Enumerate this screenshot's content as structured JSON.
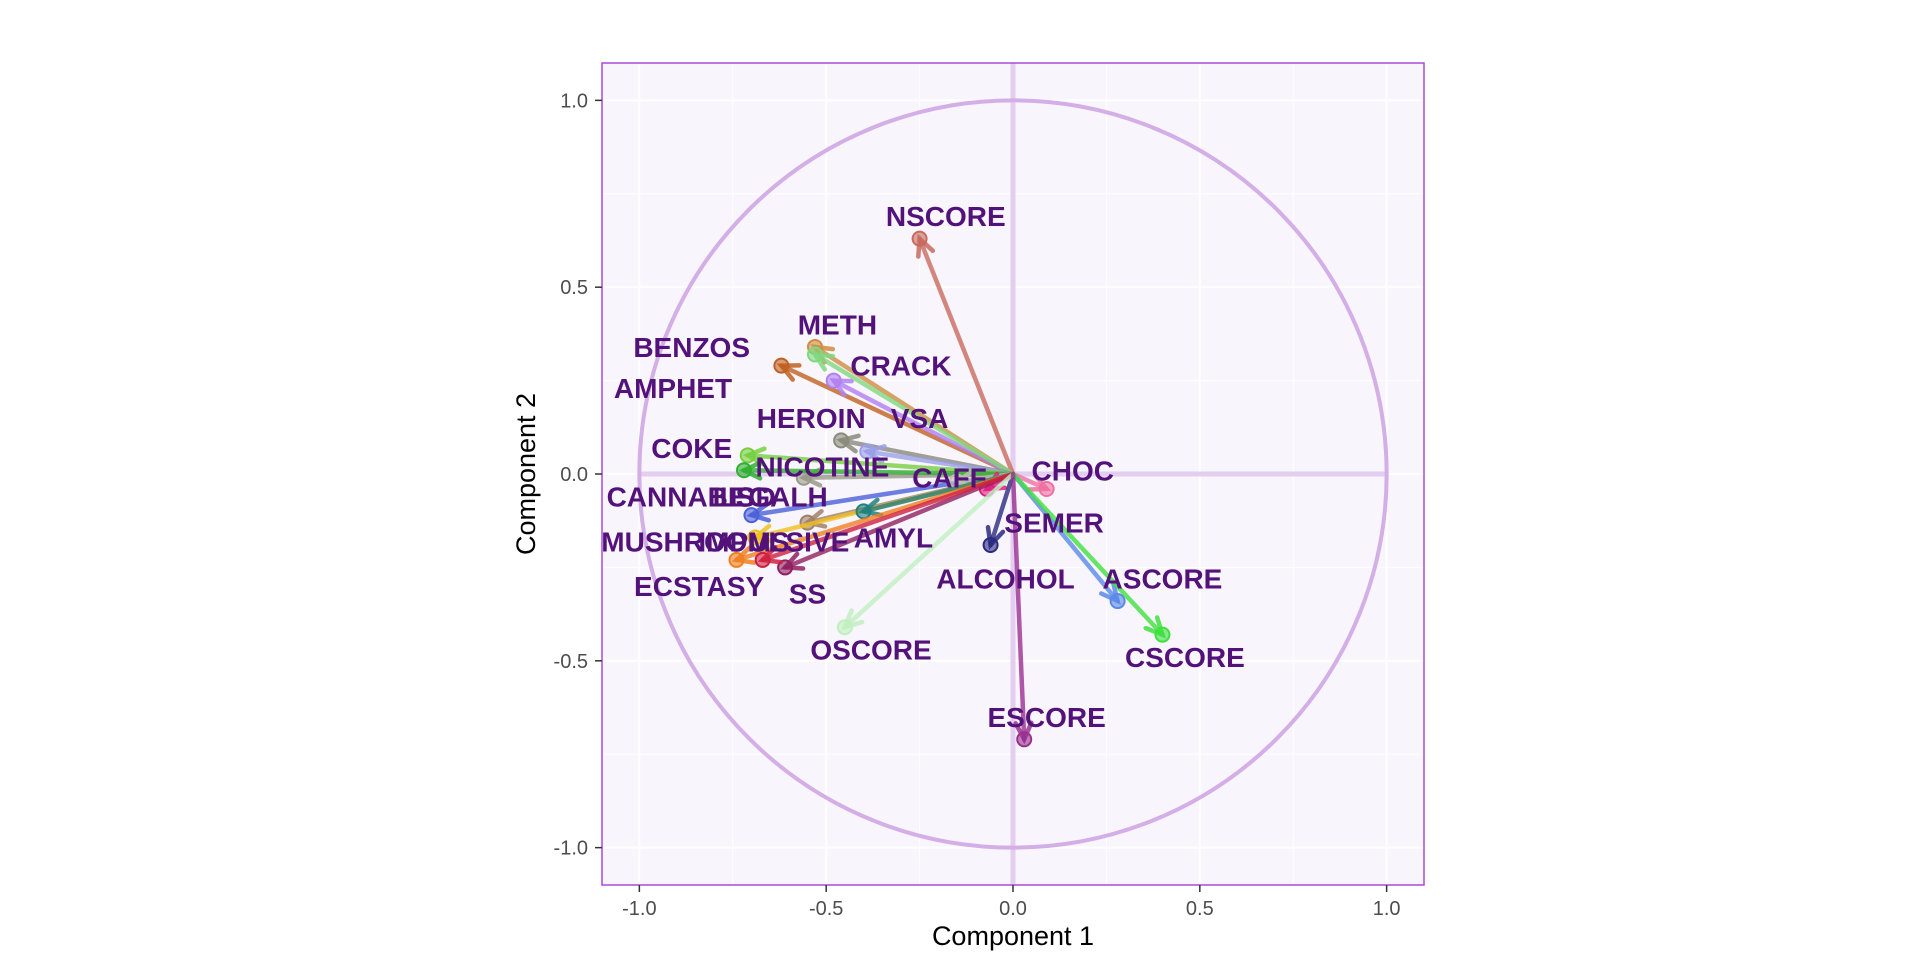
{
  "chart_data": {
    "type": "scatter",
    "subtype": "pca-correlation-circle",
    "title": "",
    "xlabel": "Component 1",
    "ylabel": "Component 2",
    "xlim": [
      -1.1,
      1.1
    ],
    "ylim": [
      -1.1,
      1.1
    ],
    "x_ticks": [
      "-1.0",
      "-0.5",
      "0.0",
      "0.5",
      "1.0"
    ],
    "y_ticks": [
      "-1.0",
      "-0.5",
      "0.0",
      "0.5",
      "1.0"
    ],
    "unit_circle": true,
    "grid": true,
    "legend": "none",
    "colors": {
      "panel_bg": "#f8f5fc",
      "panel_border": "#a64dd9",
      "circle": "#d4aee6",
      "zero_lines": "#e3cdf0",
      "label": "#52127a"
    },
    "variables": [
      {
        "name": "NSCORE",
        "x": -0.25,
        "y": 0.63,
        "color": "#c86a5e",
        "label_x": -0.18,
        "label_y": 0.69
      },
      {
        "name": "METH",
        "x": -0.53,
        "y": 0.34,
        "color": "#d08c40",
        "label_x": -0.47,
        "label_y": 0.4
      },
      {
        "name": "BENZOS",
        "x": -0.62,
        "y": 0.29,
        "color": "#c06020",
        "label_x": -0.86,
        "label_y": 0.34
      },
      {
        "name": "CRACK",
        "x": -0.48,
        "y": 0.25,
        "color": "#b080f0",
        "label_x": -0.3,
        "label_y": 0.29
      },
      {
        "name": "AMPHET",
        "x": -0.53,
        "y": 0.32,
        "color": "#80d880",
        "label_x": -0.91,
        "label_y": 0.23
      },
      {
        "name": "HEROIN",
        "x": -0.46,
        "y": 0.09,
        "color": "#8a8a7a",
        "label_x": -0.54,
        "label_y": 0.15
      },
      {
        "name": "VSA",
        "x": -0.39,
        "y": 0.06,
        "color": "#9aa0e8",
        "label_x": -0.25,
        "label_y": 0.15
      },
      {
        "name": "COKE",
        "x": -0.71,
        "y": 0.05,
        "color": "#78d040",
        "label_x": -0.86,
        "label_y": 0.07
      },
      {
        "name": "NICOTINE",
        "x": -0.56,
        "y": -0.01,
        "color": "#9a9a8a",
        "label_x": -0.51,
        "label_y": 0.02
      },
      {
        "name": "CANNABIS",
        "x": -0.72,
        "y": 0.01,
        "color": "#30b030",
        "label_x": -0.89,
        "label_y": -0.06
      },
      {
        "name": "LEGALH",
        "x": -0.7,
        "y": -0.11,
        "color": "#4a60d8",
        "label_x": -0.65,
        "label_y": -0.06
      },
      {
        "name": "LSD",
        "x": -0.55,
        "y": -0.13,
        "color": "#a0806a",
        "label_x": -0.71,
        "label_y": -0.06
      },
      {
        "name": "CAFF",
        "x": -0.15,
        "y": -0.02,
        "color": "#c0c0b0",
        "label_x": -0.17,
        "label_y": -0.01
      },
      {
        "name": "CHOC",
        "x": 0.09,
        "y": -0.04,
        "color": "#f070a0",
        "label_x": 0.16,
        "label_y": 0.01
      },
      {
        "name": "SEMER",
        "x": -0.07,
        "y": -0.04,
        "color": "#e02080",
        "label_x": 0.11,
        "label_y": -0.13
      },
      {
        "name": "MUSHROOMS",
        "x": -0.69,
        "y": -0.17,
        "color": "#f0c020",
        "label_x": -0.85,
        "label_y": -0.18
      },
      {
        "name": "AMYL",
        "x": -0.4,
        "y": -0.1,
        "color": "#208080",
        "label_x": -0.32,
        "label_y": -0.17
      },
      {
        "name": "ALCOHOL",
        "x": -0.06,
        "y": -0.19,
        "color": "#2a2a80",
        "label_x": -0.02,
        "label_y": -0.28
      },
      {
        "name": "ASCORE",
        "x": 0.28,
        "y": -0.34,
        "color": "#5a8ae8",
        "label_x": 0.4,
        "label_y": -0.28
      },
      {
        "name": "ECSTASY",
        "x": -0.74,
        "y": -0.23,
        "color": "#f08020",
        "label_x": -0.84,
        "label_y": -0.3
      },
      {
        "name": "SS",
        "x": -0.61,
        "y": -0.25,
        "color": "#902060",
        "label_x": -0.55,
        "label_y": -0.32
      },
      {
        "name": "IMPULSIVE",
        "x": -0.67,
        "y": -0.23,
        "color": "#d02040",
        "label_x": -0.64,
        "label_y": -0.18
      },
      {
        "name": "OSCORE",
        "x": -0.45,
        "y": -0.41,
        "color": "#c0f0c0",
        "label_x": -0.38,
        "label_y": -0.47
      },
      {
        "name": "CSCORE",
        "x": 0.4,
        "y": -0.43,
        "color": "#40e040",
        "label_x": 0.46,
        "label_y": -0.49
      },
      {
        "name": "ESCORE",
        "x": 0.03,
        "y": -0.71,
        "color": "#9a3090",
        "label_x": 0.09,
        "label_y": -0.65
      }
    ]
  }
}
